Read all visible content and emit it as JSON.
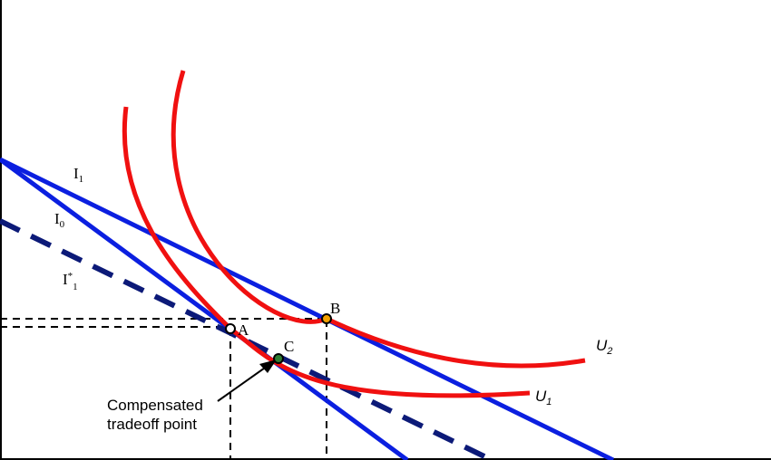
{
  "diagram": {
    "labels": {
      "i1_main": "I",
      "i1_sub": "1",
      "i0_main": "I",
      "i0_sub": "0",
      "istar_main": "I",
      "istar_sup": "*",
      "istar_sub": "1",
      "u2_main": "U",
      "u2_sub": "2",
      "u1_main": "U",
      "u1_sub": "1",
      "point_a": "A",
      "point_b": "B",
      "point_c": "C",
      "annotation_line1": "Compensated",
      "annotation_line2": "tradeoff point"
    },
    "colors": {
      "budget_lines": "#0b1fe0",
      "compensated_line": "#0c1a78",
      "indifference_curves": "#f01010",
      "point_a_fill": "#ffffff",
      "point_b_fill": "#f2a000",
      "point_c_fill": "#2e7d32",
      "guides": "#000000"
    }
  }
}
